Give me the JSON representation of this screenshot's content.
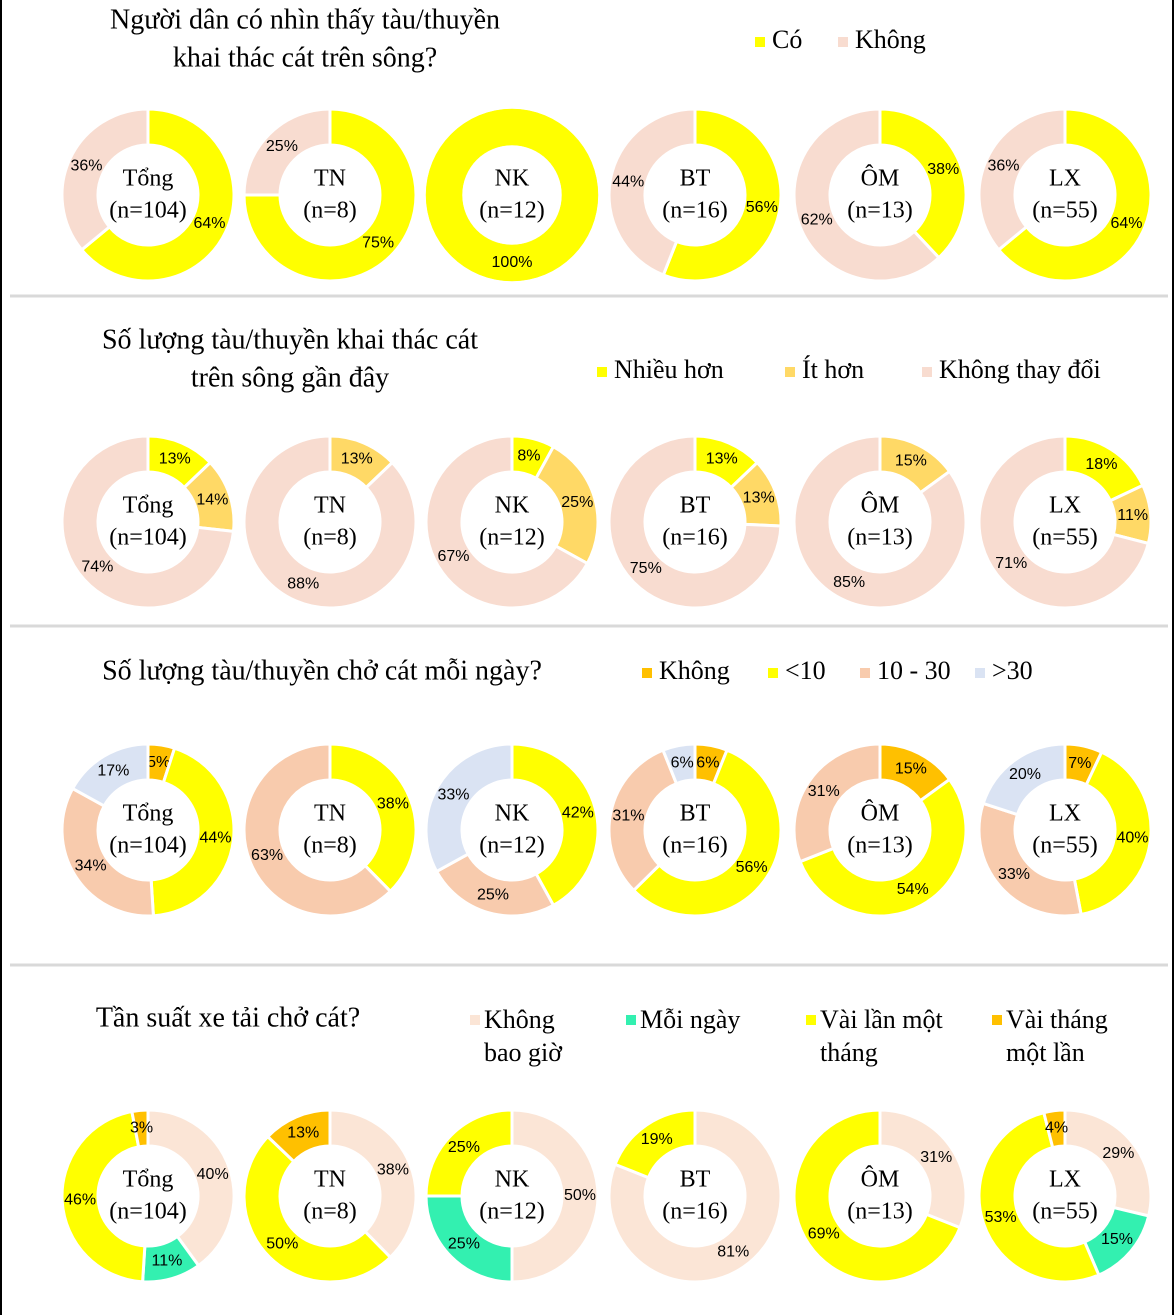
{
  "chart_data": [
    {
      "type": "donut",
      "title": [
        "Người dân có nhìn thấy tàu/thuyền",
        "khai thác cát trên sông?"
      ],
      "categories": [
        "Có",
        "Không"
      ],
      "colors": [
        "#ffff00",
        "#f8dcd0"
      ],
      "pies": [
        {
          "name": "Tổng",
          "n": "(n=104)",
          "values": [
            64,
            36
          ],
          "value_labels": [
            "64%",
            "36%"
          ]
        },
        {
          "name": "TN",
          "n": "(n=8)",
          "values": [
            75,
            25
          ],
          "value_labels": [
            "75%",
            "25%"
          ]
        },
        {
          "name": "NK",
          "n": "(n=12)",
          "values": [
            100
          ],
          "value_labels": [
            "100%"
          ]
        },
        {
          "name": "BT",
          "n": "(n=16)",
          "values": [
            56,
            44
          ],
          "value_labels": [
            "56%",
            "44%"
          ]
        },
        {
          "name": "ÔM",
          "n": "(n=13)",
          "values": [
            38,
            62
          ],
          "value_labels": [
            "38%",
            "62%"
          ]
        },
        {
          "name": "LX",
          "n": "(n=55)",
          "values": [
            64,
            36
          ],
          "value_labels": [
            "64%",
            "36%"
          ]
        }
      ]
    },
    {
      "type": "donut",
      "title": [
        "Số lượng tàu/thuyền khai thác cát",
        "trên sông gần đây"
      ],
      "categories": [
        "Nhiều hơn",
        "Ít hơn",
        "Không thay đổi"
      ],
      "colors": [
        "#ffff00",
        "#ffd966",
        "#f8dcd0"
      ],
      "pies": [
        {
          "name": "Tổng",
          "n": "(n=104)",
          "values": [
            13,
            14,
            74
          ],
          "value_labels": [
            "13%",
            "14%",
            "74%"
          ]
        },
        {
          "name": "TN",
          "n": "(n=8)",
          "values": [
            null,
            13,
            88
          ],
          "value_labels": [
            null,
            "13%",
            "88%"
          ]
        },
        {
          "name": "NK",
          "n": "(n=12)",
          "values": [
            8,
            25,
            67
          ],
          "value_labels": [
            "8%",
            "25%",
            "67%"
          ]
        },
        {
          "name": "BT",
          "n": "(n=16)",
          "values": [
            13,
            13,
            75
          ],
          "value_labels": [
            "13%",
            "13%",
            "75%"
          ]
        },
        {
          "name": "ÔM",
          "n": "(n=13)",
          "values": [
            null,
            15,
            85
          ],
          "value_labels": [
            null,
            "15%",
            "85%"
          ]
        },
        {
          "name": "LX",
          "n": "(n=55)",
          "values": [
            18,
            11,
            71
          ],
          "value_labels": [
            "18%",
            "11%",
            "71%"
          ]
        }
      ]
    },
    {
      "type": "donut",
      "title": [
        "Số lượng tàu/thuyền chở cát mỗi ngày?"
      ],
      "categories": [
        "Không",
        "<10",
        "10 - 30",
        ">30"
      ],
      "colors": [
        "#ffc000",
        "#ffff00",
        "#f8cbad",
        "#dae3f3"
      ],
      "pies": [
        {
          "name": "Tổng",
          "n": "(n=104)",
          "values": [
            5,
            44,
            34,
            17
          ],
          "value_labels": [
            "5%",
            "44%",
            "34%",
            "17%"
          ]
        },
        {
          "name": "TN",
          "n": "(n=8)",
          "values": [
            null,
            38,
            63,
            null
          ],
          "value_labels": [
            null,
            "38%",
            "63%",
            null
          ]
        },
        {
          "name": "NK",
          "n": "(n=12)",
          "values": [
            null,
            42,
            25,
            33
          ],
          "value_labels": [
            null,
            "42%",
            "25%",
            "33%"
          ]
        },
        {
          "name": "BT",
          "n": "(n=16)",
          "values": [
            6,
            56,
            31,
            6
          ],
          "value_labels": [
            "6%",
            "56%",
            "31%",
            "6%"
          ]
        },
        {
          "name": "ÔM",
          "n": "(n=13)",
          "values": [
            15,
            54,
            31,
            null
          ],
          "value_labels": [
            "15%",
            "54%",
            "31%",
            null
          ]
        },
        {
          "name": "LX",
          "n": "(n=55)",
          "values": [
            7,
            40,
            33,
            20
          ],
          "value_labels": [
            "7%",
            "40%",
            "33%",
            "20%"
          ]
        }
      ]
    },
    {
      "type": "donut",
      "title": [
        "Tần suất xe tải chở cát?"
      ],
      "categories": [
        "Không bao giờ",
        "Mỗi ngày",
        "Vài lần một tháng",
        "Vài tháng một lần"
      ],
      "colors": [
        "#fbe5d6",
        "#33f0b0",
        "#ffff00",
        "#ffc000"
      ],
      "pies": [
        {
          "name": "Tổng",
          "n": "(n=104)",
          "values": [
            40,
            11,
            46,
            3
          ],
          "value_labels": [
            "40%",
            "11%",
            "46%",
            "3%"
          ]
        },
        {
          "name": "TN",
          "n": "(n=8)",
          "values": [
            38,
            null,
            50,
            13
          ],
          "value_labels": [
            "38%",
            null,
            "50%",
            "13%"
          ]
        },
        {
          "name": "NK",
          "n": "(n=12)",
          "values": [
            50,
            25,
            25,
            null
          ],
          "value_labels": [
            "50%",
            "25%",
            "25%",
            null
          ]
        },
        {
          "name": "BT",
          "n": "(n=16)",
          "values": [
            81,
            null,
            19,
            null
          ],
          "value_labels": [
            "81%",
            null,
            "19%",
            null
          ]
        },
        {
          "name": "ÔM",
          "n": "(n=13)",
          "values": [
            31,
            null,
            69,
            null
          ],
          "value_labels": [
            "31%",
            null,
            "69%",
            null
          ]
        },
        {
          "name": "LX",
          "n": "(n=55)",
          "values": [
            29,
            15,
            53,
            4
          ],
          "value_labels": [
            "29%",
            "15%",
            "53%",
            "4%"
          ]
        }
      ]
    }
  ]
}
